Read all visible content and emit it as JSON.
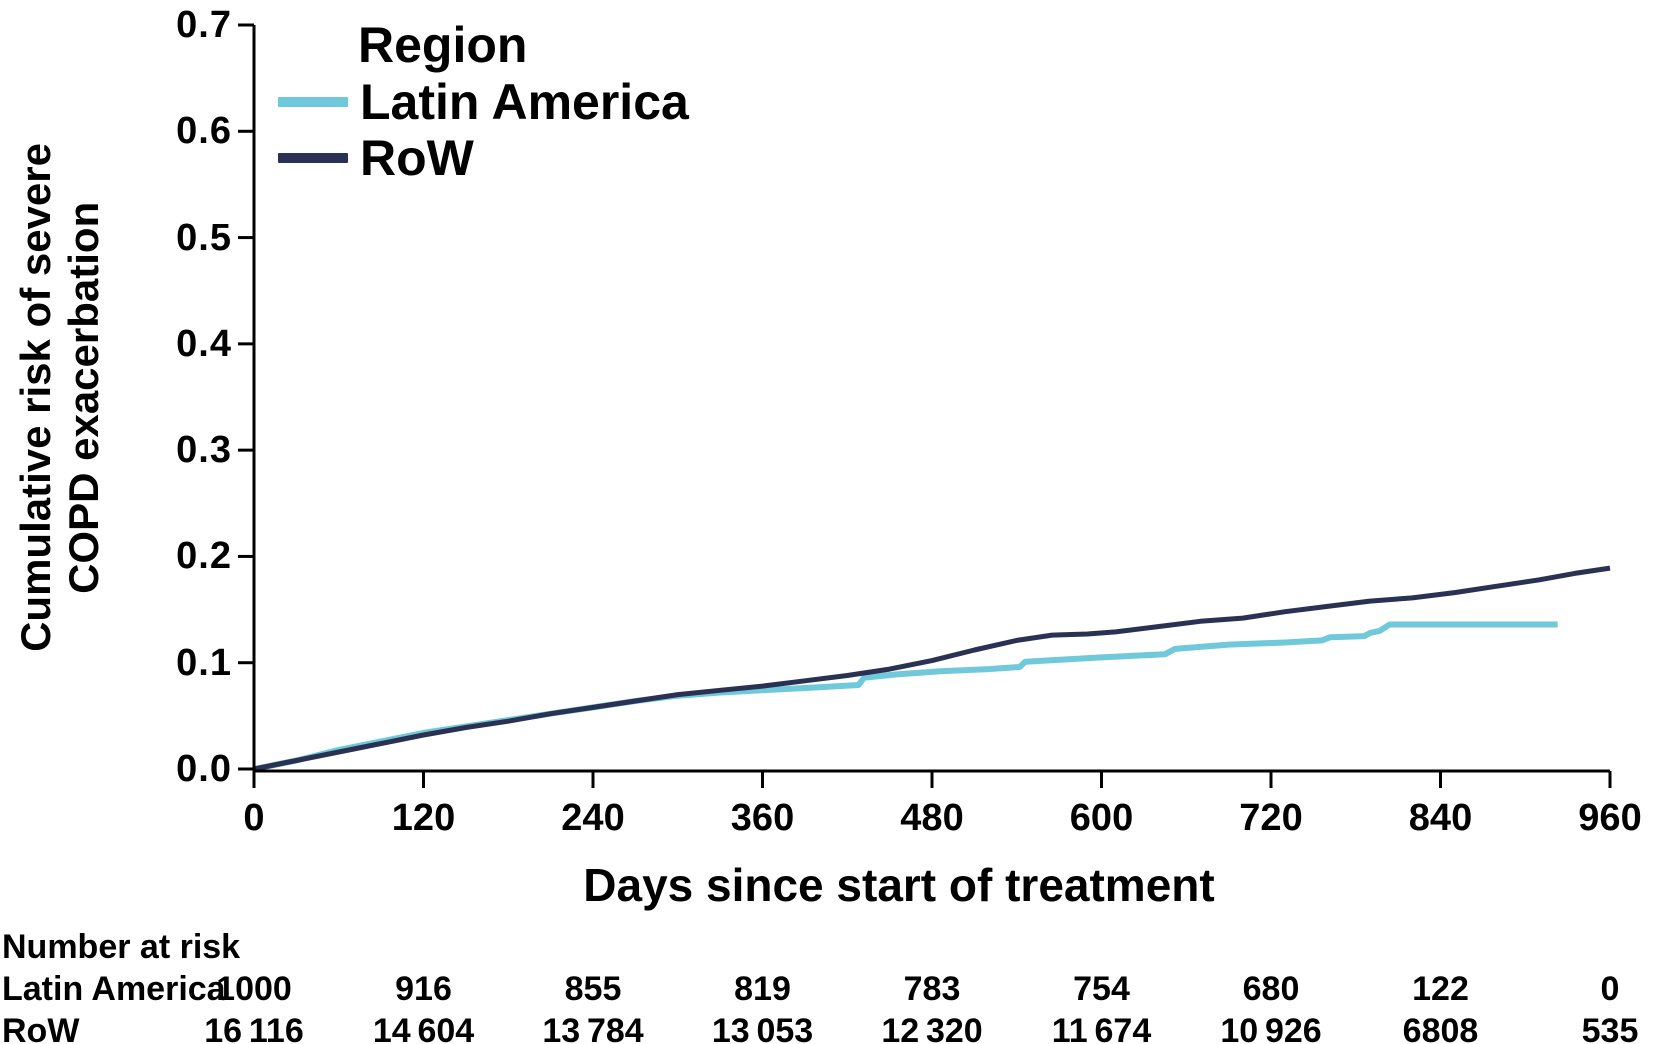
{
  "chart_data": {
    "type": "line",
    "subtype": "kaplan-meier-cumulative-incidence",
    "title": "",
    "xlabel": "Days since start of treatment",
    "ylabel_lines": [
      "Cumulative risk of severe",
      "COPD exacerbation"
    ],
    "xlim": [
      0,
      960
    ],
    "ylim": [
      0.0,
      0.7
    ],
    "grid": false,
    "legend": {
      "title": "Region",
      "position": "top-left-inside"
    },
    "xticks": [
      {
        "v": 0,
        "label": "0"
      },
      {
        "v": 120,
        "label": "120"
      },
      {
        "v": 240,
        "label": "240"
      },
      {
        "v": 360,
        "label": "360"
      },
      {
        "v": 480,
        "label": "480"
      },
      {
        "v": 600,
        "label": "600"
      },
      {
        "v": 720,
        "label": "720"
      },
      {
        "v": 840,
        "label": "840"
      },
      {
        "v": 960,
        "label": "960"
      }
    ],
    "yticks": [
      {
        "v": 0.0,
        "label": "0.0"
      },
      {
        "v": 0.1,
        "label": "0.1"
      },
      {
        "v": 0.2,
        "label": "0.2"
      },
      {
        "v": 0.3,
        "label": "0.3"
      },
      {
        "v": 0.4,
        "label": "0.4"
      },
      {
        "v": 0.5,
        "label": "0.5"
      },
      {
        "v": 0.6,
        "label": "0.6"
      },
      {
        "v": 0.7,
        "label": "0.7"
      }
    ],
    "series": [
      {
        "name": "Latin America",
        "color": "#6fc9da",
        "points": [
          [
            0,
            0
          ],
          [
            30,
            0.008
          ],
          [
            60,
            0.018
          ],
          [
            90,
            0.026
          ],
          [
            120,
            0.034
          ],
          [
            150,
            0.04
          ],
          [
            180,
            0.046
          ],
          [
            210,
            0.052
          ],
          [
            240,
            0.058
          ],
          [
            270,
            0.064
          ],
          [
            300,
            0.069
          ],
          [
            330,
            0.072
          ],
          [
            360,
            0.074
          ],
          [
            380,
            0.0755
          ],
          [
            400,
            0.077
          ],
          [
            428,
            0.079
          ],
          [
            432,
            0.086
          ],
          [
            455,
            0.089
          ],
          [
            486,
            0.092
          ],
          [
            520,
            0.094
          ],
          [
            542,
            0.096
          ],
          [
            546,
            0.101
          ],
          [
            600,
            0.105
          ],
          [
            645,
            0.108
          ],
          [
            652,
            0.113
          ],
          [
            690,
            0.117
          ],
          [
            730,
            0.119
          ],
          [
            756,
            0.121
          ],
          [
            762,
            0.124
          ],
          [
            786,
            0.125
          ],
          [
            790,
            0.128
          ],
          [
            797,
            0.13
          ],
          [
            804,
            0.136
          ],
          [
            923,
            0.136
          ]
        ]
      },
      {
        "name": "RoW",
        "color": "#2a3152",
        "points": [
          [
            0,
            0
          ],
          [
            30,
            0.008
          ],
          [
            60,
            0.016
          ],
          [
            90,
            0.024
          ],
          [
            120,
            0.032
          ],
          [
            150,
            0.039
          ],
          [
            180,
            0.045
          ],
          [
            210,
            0.052
          ],
          [
            240,
            0.058
          ],
          [
            270,
            0.064
          ],
          [
            300,
            0.07
          ],
          [
            330,
            0.074
          ],
          [
            360,
            0.078
          ],
          [
            390,
            0.083
          ],
          [
            420,
            0.088
          ],
          [
            450,
            0.094
          ],
          [
            480,
            0.102
          ],
          [
            510,
            0.112
          ],
          [
            540,
            0.121
          ],
          [
            565,
            0.126
          ],
          [
            590,
            0.127
          ],
          [
            610,
            0.129
          ],
          [
            640,
            0.134
          ],
          [
            670,
            0.139
          ],
          [
            700,
            0.142
          ],
          [
            730,
            0.148
          ],
          [
            760,
            0.153
          ],
          [
            790,
            0.158
          ],
          [
            820,
            0.161
          ],
          [
            850,
            0.166
          ],
          [
            880,
            0.172
          ],
          [
            910,
            0.178
          ],
          [
            935,
            0.184
          ],
          [
            960,
            0.189
          ]
        ]
      }
    ],
    "number_at_risk": {
      "title": "Number at risk",
      "timepoints": [
        0,
        120,
        240,
        360,
        480,
        600,
        720,
        840,
        960
      ],
      "rows": [
        {
          "label": "Latin America",
          "values": [
            "1000",
            "916",
            "855",
            "819",
            "783",
            "754",
            "680",
            "122",
            "0"
          ]
        },
        {
          "label": "RoW",
          "values": [
            "16 116",
            "14 604",
            "13 784",
            "13 053",
            "12 320",
            "11 674",
            "10 926",
            "6808",
            "535"
          ]
        }
      ]
    },
    "axis_color": "#000000"
  }
}
